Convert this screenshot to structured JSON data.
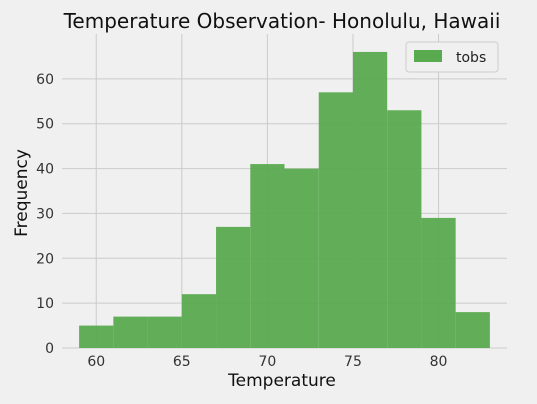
{
  "chart_data": {
    "type": "bar",
    "title": "Temperature Observation- Honolulu, Hawaii",
    "xlabel": "Temperature",
    "ylabel": "Frequency",
    "xlim": [
      58,
      84
    ],
    "ylim": [
      0,
      70
    ],
    "xticks": [
      60,
      65,
      70,
      75,
      80
    ],
    "yticks": [
      0,
      10,
      20,
      30,
      40,
      50,
      60
    ],
    "grid": true,
    "legend_position": "top-right",
    "series": [
      {
        "name": "tobs",
        "color": "#5aaa4f",
        "bins": [
          {
            "x0": 59,
            "x1": 61,
            "count": 5
          },
          {
            "x0": 61,
            "x1": 63,
            "count": 7
          },
          {
            "x0": 63,
            "x1": 65,
            "count": 7
          },
          {
            "x0": 65,
            "x1": 67,
            "count": 12
          },
          {
            "x0": 67,
            "x1": 69,
            "count": 27
          },
          {
            "x0": 69,
            "x1": 71,
            "count": 41
          },
          {
            "x0": 71,
            "x1": 73,
            "count": 40
          },
          {
            "x0": 73,
            "x1": 75,
            "count": 57
          },
          {
            "x0": 75,
            "x1": 77,
            "count": 66
          },
          {
            "x0": 77,
            "x1": 79,
            "count": 53
          },
          {
            "x0": 79,
            "x1": 81,
            "count": 29
          },
          {
            "x0": 81,
            "x1": 83,
            "count": 8
          }
        ]
      }
    ]
  }
}
